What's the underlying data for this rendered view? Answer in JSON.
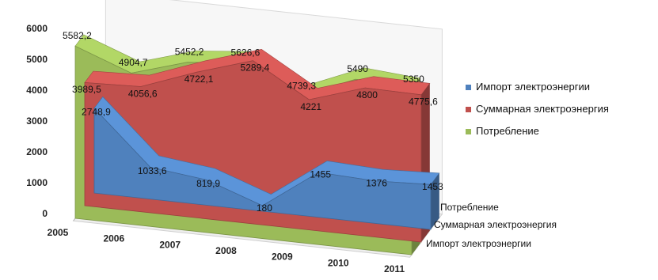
{
  "chart_data": {
    "type": "area",
    "three_d": true,
    "categories": [
      "2005",
      "2006",
      "2007",
      "2008",
      "2009",
      "2010",
      "2011"
    ],
    "series": [
      {
        "name": "Импорт электроэнергии",
        "color": "#4f81bd",
        "values": [
          2748.9,
          1033.6,
          819.9,
          180,
          1455,
          1376,
          1453
        ],
        "labels": [
          "2748,9",
          "1033,6",
          "819,9",
          "180",
          "1455",
          "1376",
          "1453"
        ]
      },
      {
        "name": "Суммарная электроэнергия",
        "color": "#c0504d",
        "values": [
          3989.5,
          4056.6,
          4722.1,
          5289.4,
          4221,
          4800,
          4775.6
        ],
        "labels": [
          "3989,5",
          "4056,6",
          "4722,1",
          "5289,4",
          "4221",
          "4800",
          "4775,6"
        ]
      },
      {
        "name": "Потребление",
        "color": "#9bbb59",
        "values": [
          5582.2,
          4904.7,
          5452.2,
          5626.6,
          4739.3,
          5490,
          5350
        ],
        "labels": [
          "5582,2",
          "4904,7",
          "5452,2",
          "5626,6",
          "4739,3",
          "5490",
          "5350"
        ]
      }
    ],
    "depth_labels": [
      "Потребление",
      "Суммарная электроэнергия",
      "Импорт электроэнергии"
    ],
    "y_ticks": [
      "0",
      "1000",
      "2000",
      "3000",
      "4000",
      "5000",
      "6000"
    ],
    "ylim": [
      0,
      6000
    ],
    "legend_position": "right",
    "grid": false
  }
}
